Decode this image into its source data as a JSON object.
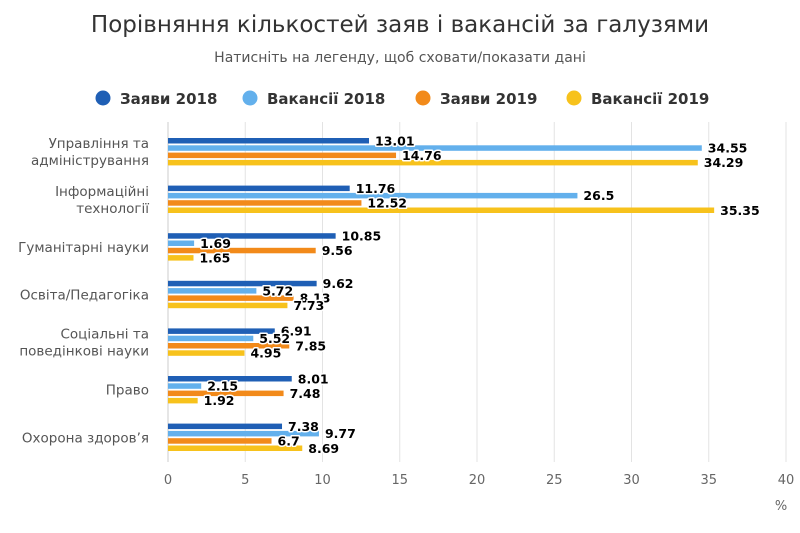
{
  "chart_data": {
    "type": "bar",
    "orientation": "horizontal",
    "title": "Порівняння кількостей заяв і вакансій за галузями",
    "subtitle": "Натисніть на легенду, щоб сховати/показати дані",
    "categories": [
      [
        "Управління та",
        "адміністрування"
      ],
      [
        "Інформаційні",
        "технології"
      ],
      [
        "Гуманітарні науки"
      ],
      [
        "Освіта/Педагогіка"
      ],
      [
        "Соціальні та",
        "поведінкові науки"
      ],
      [
        "Право"
      ],
      [
        "Охорона здоров’я"
      ]
    ],
    "series": [
      {
        "name": "Заяви 2018",
        "color": "#1f5fb5",
        "values": [
          13.01,
          11.76,
          10.85,
          9.62,
          6.91,
          8.01,
          7.38
        ]
      },
      {
        "name": "Вакансії 2018",
        "color": "#63b0ec",
        "values": [
          34.55,
          26.5,
          1.69,
          5.72,
          5.52,
          2.15,
          9.77
        ]
      },
      {
        "name": "Заяви 2019",
        "color": "#f28a1a",
        "values": [
          14.76,
          12.52,
          9.56,
          8.13,
          7.85,
          7.48,
          6.7
        ]
      },
      {
        "name": "Вакансії 2019",
        "color": "#f7c21c",
        "values": [
          34.29,
          35.35,
          1.65,
          7.73,
          4.95,
          1.92,
          8.69
        ]
      }
    ],
    "xlim": [
      0,
      40
    ],
    "xticks": [
      0,
      5,
      10,
      15,
      20,
      25,
      30,
      35,
      40
    ],
    "xlabel": "%",
    "grid": "vertical",
    "legend": "top-center"
  }
}
